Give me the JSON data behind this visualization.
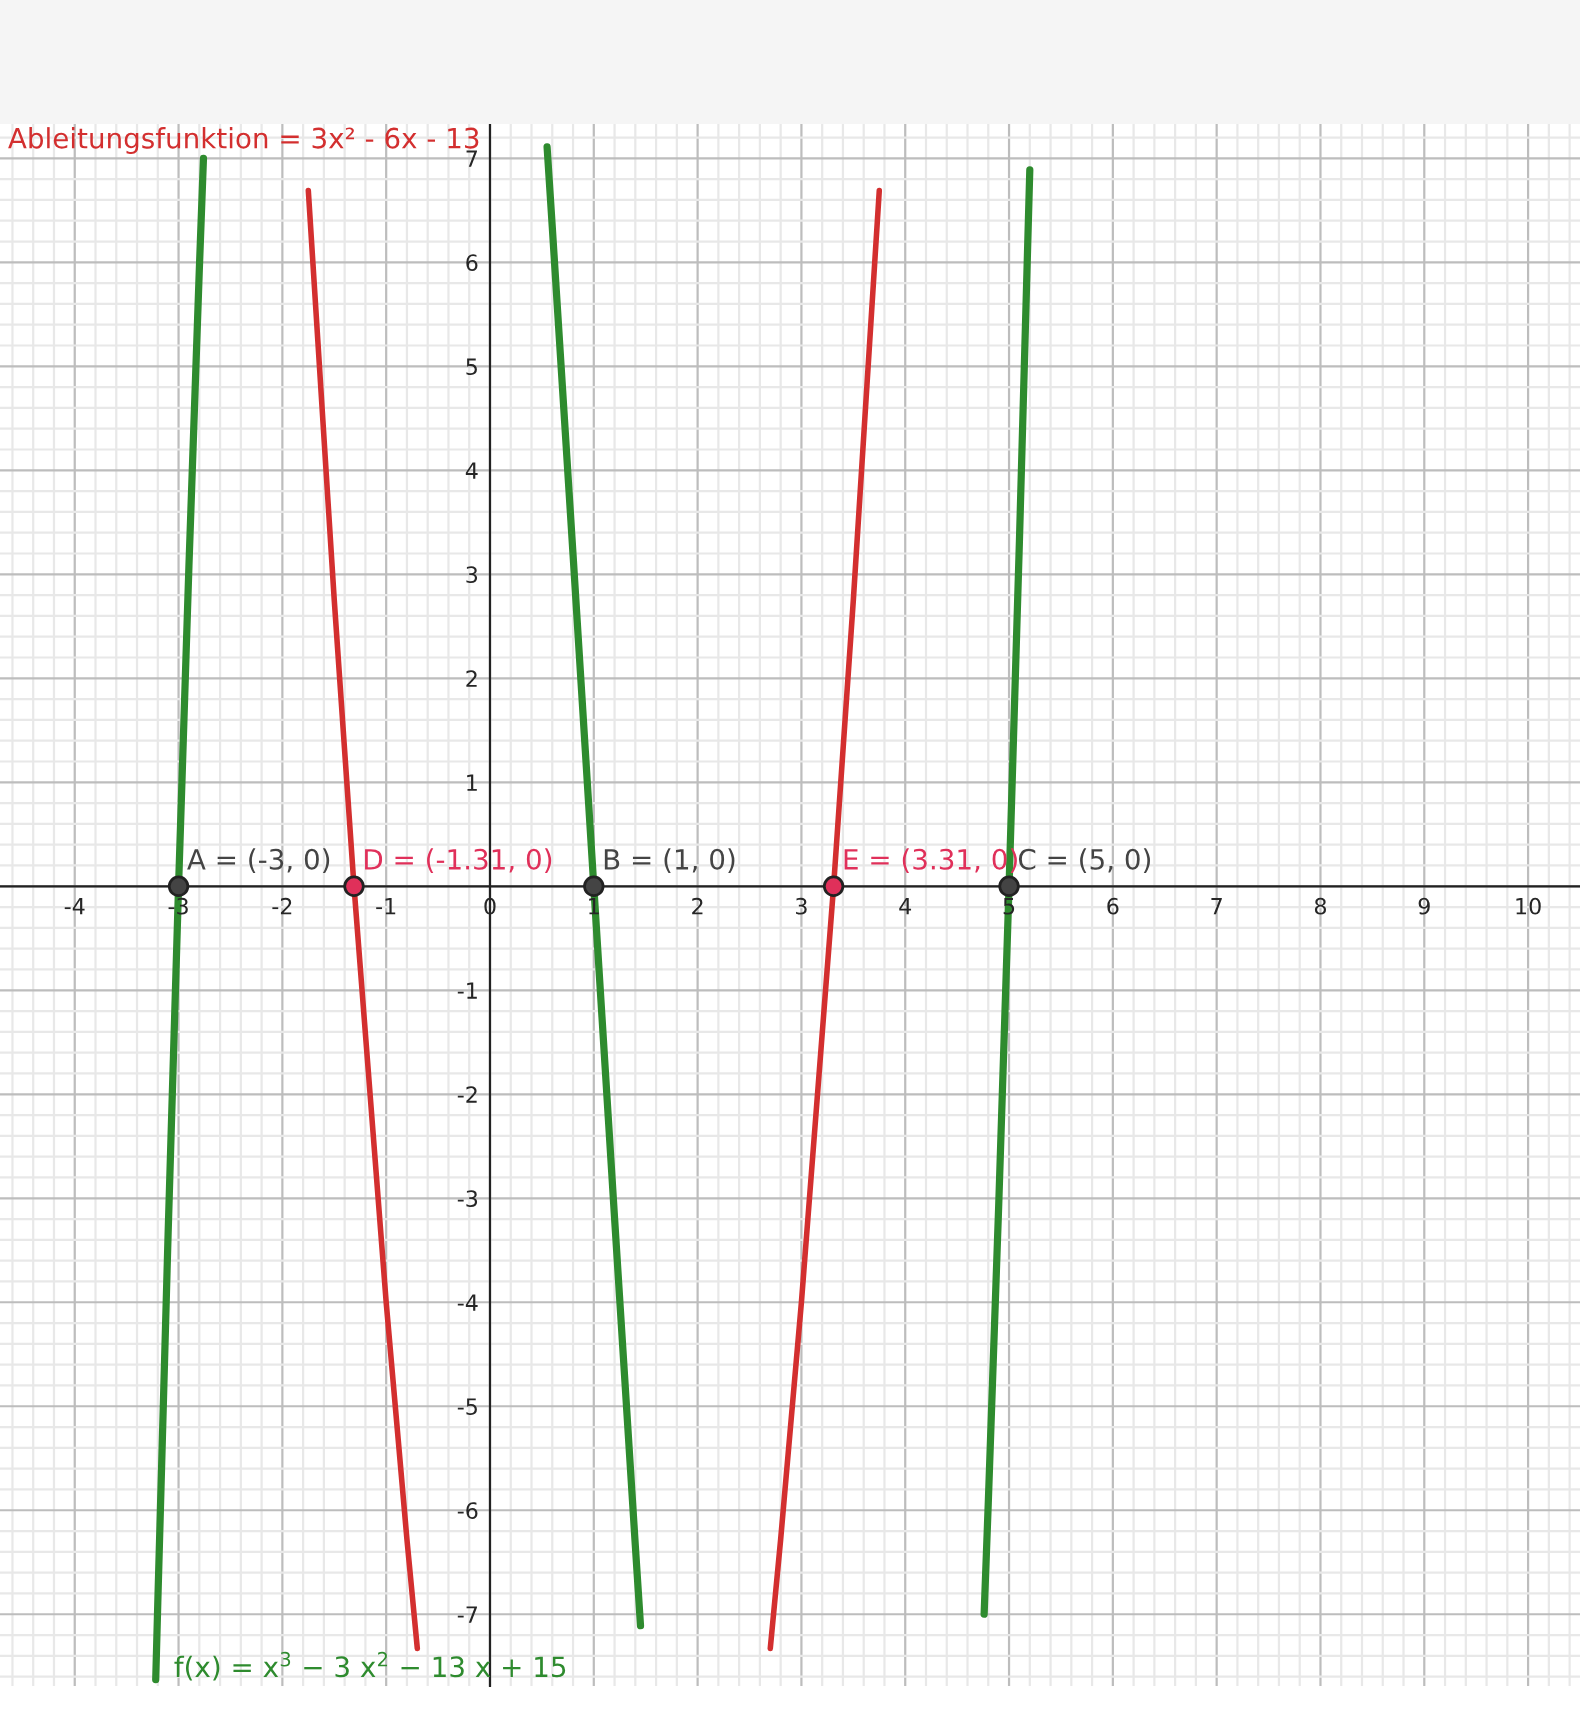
{
  "chart_data": {
    "type": "line",
    "xlim": [
      -4.72,
      10.5
    ],
    "ylim": [
      -7.69,
      7.33
    ],
    "xticks": [
      -4,
      -3,
      -2,
      -1,
      0,
      1,
      2,
      3,
      4,
      5,
      6,
      7,
      8,
      9,
      10
    ],
    "yticks": [
      -7,
      -6,
      -5,
      -4,
      -3,
      -2,
      -1,
      1,
      2,
      3,
      4,
      5,
      6,
      7
    ],
    "grid": true,
    "legend": false,
    "series": [
      {
        "name": "f(x) = x$^{3}$ − 3 x$^{2}$ − 13 x + 15",
        "color": "#2e8b2e",
        "x": [
          -3.22,
          -3.2,
          -3.1,
          -3.0,
          -2.9,
          -2.8,
          -2.76,
          -2.0,
          0.55,
          0.6,
          0.8,
          1.0,
          1.2,
          1.4,
          1.45,
          3.0,
          4.76,
          4.8,
          4.9,
          5.0,
          5.1,
          5.2
        ],
        "values": [
          -7.63,
          -6.89,
          -3.32,
          0,
          3.08,
          5.93,
          7.0,
          null,
          7.11,
          6.34,
          3.19,
          0,
          -3.19,
          -6.34,
          -7.11,
          null,
          -7.0,
          -5.93,
          -3.08,
          0,
          3.32,
          6.89
        ]
      },
      {
        "name": "Ableitungsfunktion = 3x² - 6x - 13",
        "color": "#d32f2f",
        "x": [
          -1.75,
          -1.5,
          -1.31,
          -1.0,
          -0.8,
          -0.7,
          1.0,
          2.7,
          2.8,
          3.0,
          3.31,
          3.5,
          3.75
        ],
        "values": [
          6.69,
          2.75,
          0,
          -4.0,
          -6.28,
          -7.33,
          null,
          -7.33,
          -6.28,
          -4.0,
          0,
          2.75,
          6.69
        ]
      },
      {
        "type": "scatter",
        "x": [
          -3,
          -1.31,
          1,
          3.31,
          5
        ],
        "values": [
          0,
          0,
          0,
          0,
          0
        ],
        "colors": [
          "#444444",
          "#e0305a",
          "#444444",
          "#e0305a",
          "#444444"
        ],
        "value_labels": [
          "A = (-3, 0)",
          "D = (-1.31, 0)",
          "B = (1, 0)",
          "E = (3.31, 0)",
          "C = (5, 0)"
        ]
      }
    ]
  }
}
